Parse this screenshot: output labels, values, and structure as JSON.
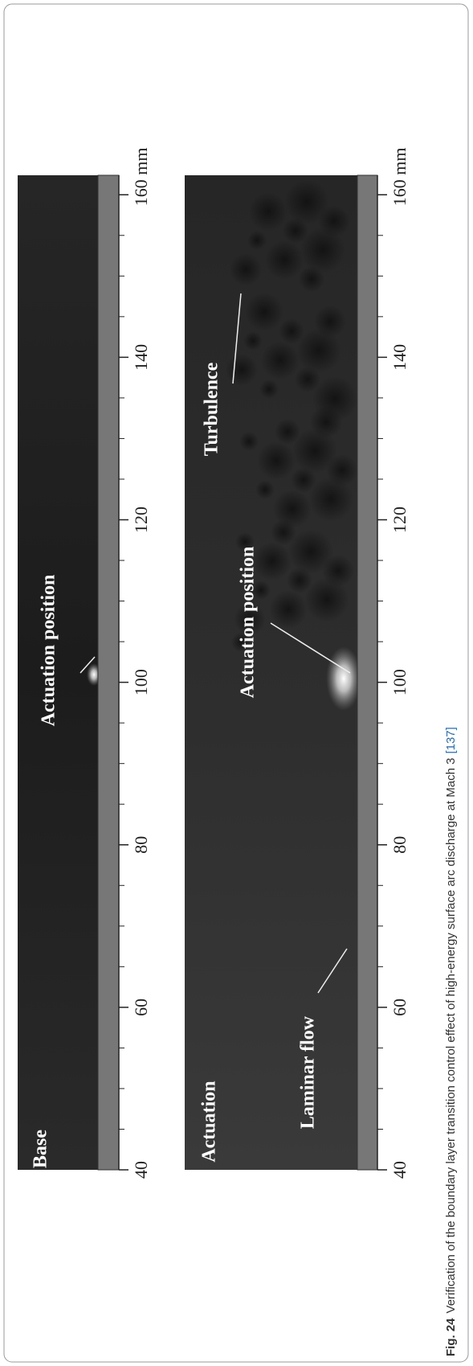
{
  "figure": {
    "caption_label": "Fig. 24",
    "caption_text": "Verification of the boundary layer transition control effect of high-energy surface arc discharge at Mach 3",
    "citation": "[137]",
    "axis": {
      "xlim": [
        40,
        162.4
      ],
      "ticks": [
        40,
        60,
        80,
        100,
        120,
        140,
        {
          "value": 160,
          "label": "160 mm"
        }
      ],
      "minor_ticks": [
        45,
        50,
        55,
        65,
        70,
        75,
        85,
        90,
        95,
        105,
        110,
        115,
        125,
        130,
        135,
        145,
        150,
        155
      ]
    },
    "panels": [
      {
        "label": "Base",
        "annotations": [
          "Actuation position"
        ]
      },
      {
        "label": "Actuation",
        "annotations": [
          "Laminar flow",
          "Actuation position",
          "Turbulence"
        ]
      }
    ]
  }
}
